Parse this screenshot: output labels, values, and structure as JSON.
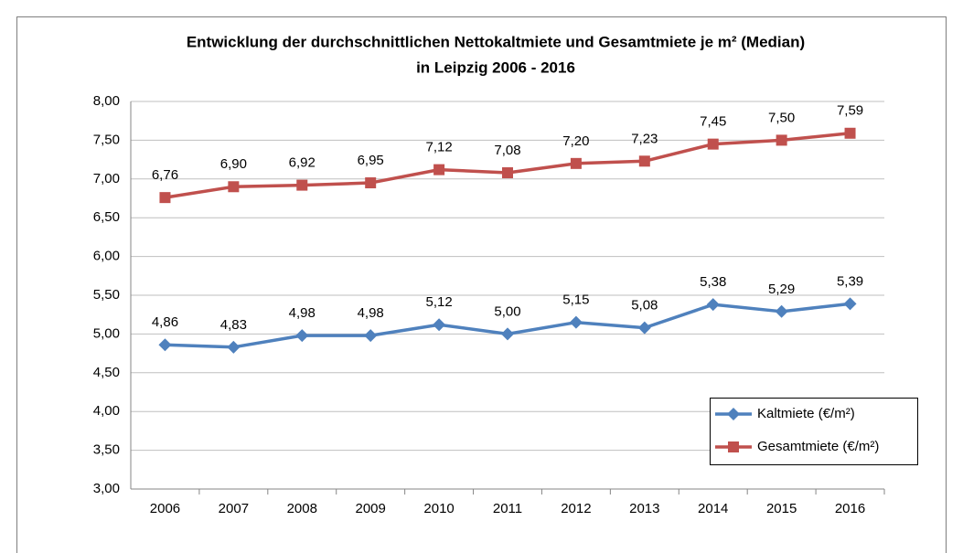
{
  "chart_data": {
    "type": "line",
    "title": [
      "Entwicklung der durchschnittlichen  Nettokaltmiete und Gesamtmiete je m² (Median)",
      "in Leipzig 2006 - 2016"
    ],
    "categories": [
      "2006",
      "2007",
      "2008",
      "2009",
      "2010",
      "2011",
      "2012",
      "2013",
      "2014",
      "2015",
      "2016"
    ],
    "series": [
      {
        "name": "Kaltmiete (€/m²)",
        "color": "#4f81bd",
        "marker": "diamond",
        "values": [
          4.86,
          4.83,
          4.98,
          4.98,
          5.12,
          5.0,
          5.15,
          5.08,
          5.38,
          5.29,
          5.39
        ],
        "value_labels": [
          "4,86",
          "4,83",
          "4,98",
          "4,98",
          "5,12",
          "5,00",
          "5,15",
          "5,08",
          "5,38",
          "5,29",
          "5,39"
        ]
      },
      {
        "name": "Gesamtmiete (€/m²)",
        "color": "#c0504d",
        "marker": "square",
        "values": [
          6.76,
          6.9,
          6.92,
          6.95,
          7.12,
          7.08,
          7.2,
          7.23,
          7.45,
          7.5,
          7.59
        ],
        "value_labels": [
          "6,76",
          "6,90",
          "6,92",
          "6,95",
          "7,12",
          "7,08",
          "7,20",
          "7,23",
          "7,45",
          "7,50",
          "7,59"
        ]
      }
    ],
    "ylim": [
      3,
      8
    ],
    "yticks": [
      {
        "value": 3,
        "label": "3,00"
      },
      {
        "value": 3.5,
        "label": "3,50"
      },
      {
        "value": 4,
        "label": "4,00"
      },
      {
        "value": 4.5,
        "label": "4,50"
      },
      {
        "value": 5,
        "label": "5,00"
      },
      {
        "value": 5.5,
        "label": "5,50"
      },
      {
        "value": 6,
        "label": "6,00"
      },
      {
        "value": 6.5,
        "label": "6,50"
      },
      {
        "value": 7,
        "label": "7,00"
      },
      {
        "value": 7.5,
        "label": "7,50"
      },
      {
        "value": 8,
        "label": "8,00"
      }
    ],
    "grid": true,
    "legend": "lower right"
  }
}
